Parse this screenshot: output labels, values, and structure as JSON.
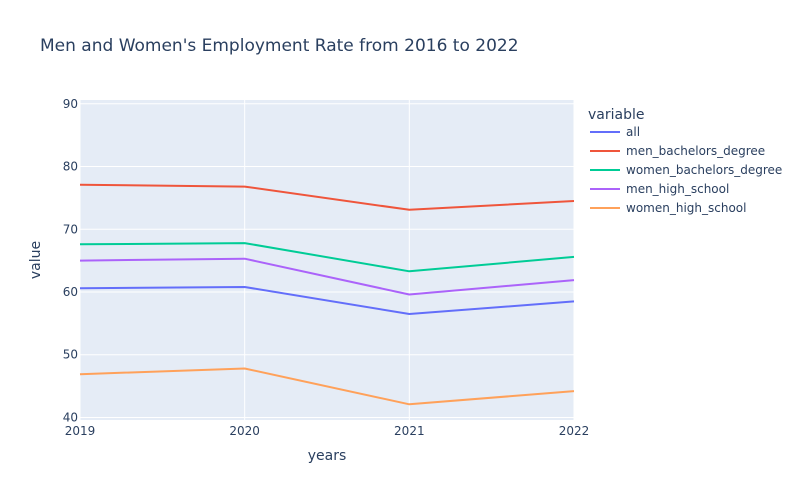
{
  "chart_data": {
    "type": "line",
    "title": "Men and Women's Employment Rate from 2016 to 2022",
    "xlabel": "years",
    "ylabel": "value",
    "x": [
      "2019",
      "2020",
      "2021",
      "2022"
    ],
    "x_ticks": [
      "2019",
      "2020",
      "2021",
      "2022"
    ],
    "y_ticks": [
      "40",
      "50",
      "60",
      "70",
      "80",
      "90"
    ],
    "ylim": [
      39.6,
      90.6
    ],
    "grid": true,
    "legend_title": "variable",
    "legend_position": "right",
    "series": [
      {
        "name": "all",
        "color": "#636efa",
        "values": [
          60.6,
          60.8,
          56.5,
          58.5
        ]
      },
      {
        "name": "men_bachelors_degree",
        "color": "#ef553b",
        "values": [
          77.1,
          76.8,
          73.1,
          74.5
        ]
      },
      {
        "name": "women_bachelors_degree",
        "color": "#00cc96",
        "values": [
          67.6,
          67.8,
          63.3,
          65.6
        ]
      },
      {
        "name": "men_high_school",
        "color": "#ab63fa",
        "values": [
          65.0,
          65.3,
          59.6,
          61.9
        ]
      },
      {
        "name": "women_high_school",
        "color": "#ffa15a",
        "values": [
          46.9,
          47.8,
          42.1,
          44.2
        ]
      }
    ]
  }
}
